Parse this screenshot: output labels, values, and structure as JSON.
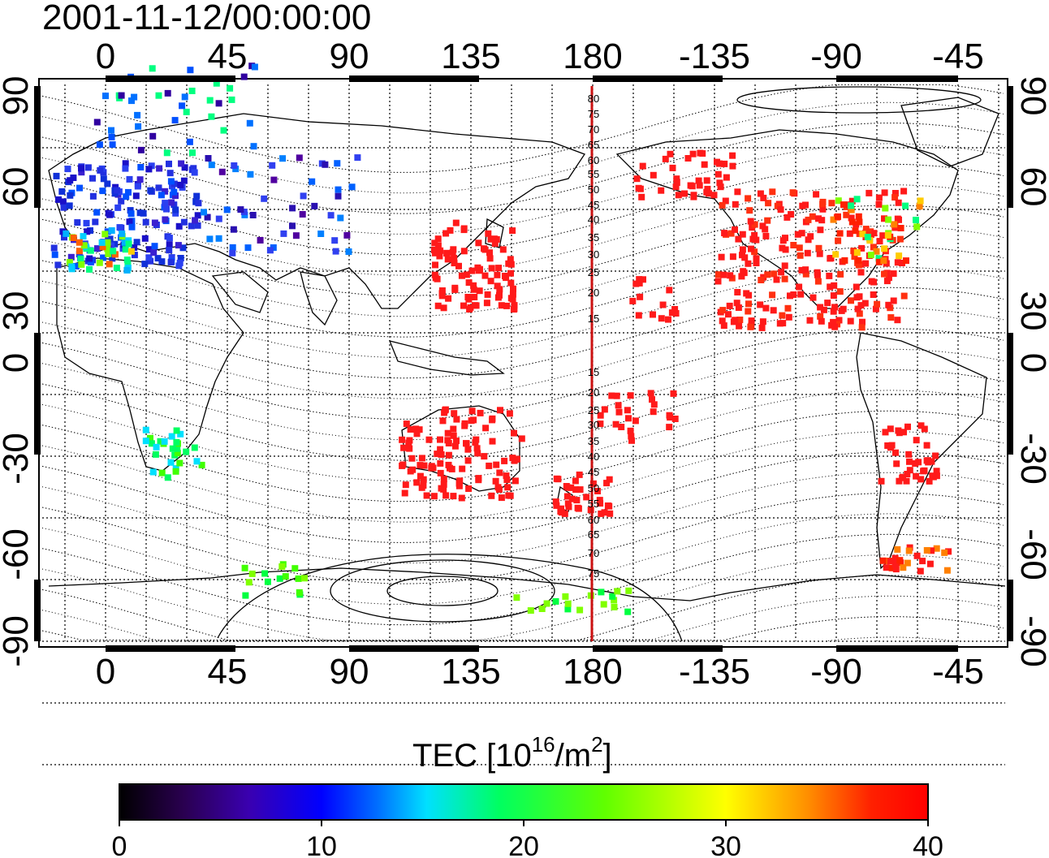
{
  "title": "2001-11-12/00:00:00",
  "longitude_ticks": [
    "0",
    "45",
    "90",
    "135",
    "180",
    "-135",
    "-90",
    "-45"
  ],
  "latitude_ticks": [
    "90",
    "60",
    "30",
    "0",
    "-30",
    "-60",
    "-90"
  ],
  "colorbar": {
    "label_main": "TEC  [10",
    "label_exp": "16",
    "label_unit": "/m",
    "label_exp2": "2",
    "label_end": "]",
    "ticks": [
      "0",
      "10",
      "20",
      "30",
      "40"
    ],
    "min": 0,
    "max": 40
  },
  "meridian_labels": [
    "80",
    "75",
    "70",
    "65",
    "60",
    "55",
    "50",
    "45",
    "40",
    "35",
    "30",
    "25",
    "20",
    "15",
    "15",
    "20",
    "25",
    "30",
    "35",
    "40",
    "45",
    "50",
    "55",
    "60",
    "65",
    "70",
    "75"
  ],
  "colors": {
    "red": "#ff1a1a",
    "meridian": "#cc1111",
    "colormap": [
      "#000000",
      "#2a0050",
      "#3a00b0",
      "#0000ff",
      "#0070ff",
      "#00e0ff",
      "#00ff60",
      "#60ff00",
      "#ffff00",
      "#ff9000",
      "#ff2000",
      "#ff0000"
    ]
  }
}
